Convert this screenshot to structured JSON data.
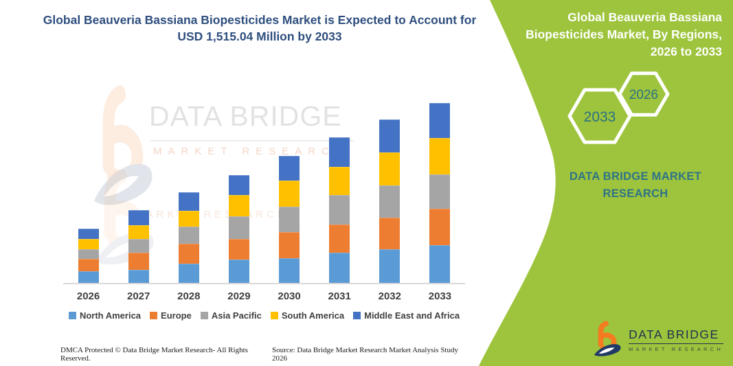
{
  "header": {
    "title": "Global Beauveria Bassiana Biopesticides Market is Expected to Account for USD 1,515.04 Million by 2033"
  },
  "side_panel": {
    "title": "Global Beauveria Bassiana Biopesticides Market, By Regions, 2026 to 2033",
    "hexagon_back_label": "2033",
    "hexagon_front_label": "2026",
    "brand_text": "DATA BRIDGE MARKET RESEARCH",
    "panel_color": "#9DC43C",
    "text_teal": "#2E7388"
  },
  "watermark": {
    "brand_line1": "DATA BRIDGE",
    "brand_line2": "MARKET RESEARCH",
    "ghost_line": "MARKET RESEARCH"
  },
  "logo": {
    "line1": "DATA BRIDGE",
    "line2": "MARKET RESEARCH"
  },
  "footer": {
    "left": "DMCA Protected © Data Bridge Market Research-  All Rights Reserved.",
    "right": "Source: Data Bridge Market Research  Market Analysis Study 2026"
  },
  "chart_data": {
    "type": "bar",
    "subtype": "stacked-vertical",
    "unit": "USD Million",
    "categories": [
      "2026",
      "2027",
      "2028",
      "2029",
      "2030",
      "2031",
      "2032",
      "2033"
    ],
    "series": [
      {
        "name": "North America",
        "color": "#5B9BD5",
        "values": [
          99,
          110,
          160,
          198,
          210,
          253,
          282,
          316.04
        ]
      },
      {
        "name": "Europe",
        "color": "#ED7D31",
        "values": [
          105,
          147,
          168,
          173,
          216,
          240,
          270,
          309
        ]
      },
      {
        "name": "Asia Pacific",
        "color": "#A5A5A5",
        "values": [
          80,
          113,
          145,
          188,
          214,
          245,
          272,
          289
        ]
      },
      {
        "name": "South America",
        "color": "#FFC000",
        "values": [
          85,
          119,
          136,
          179,
          219,
          240,
          274,
          309
        ]
      },
      {
        "name": "Middle East and Africa",
        "color": "#4472C4",
        "values": [
          91,
          124,
          153,
          173,
          211,
          246,
          279,
          292
        ]
      }
    ],
    "estimated_totals": [
      460,
      613,
      762,
      911,
      1070,
      1224,
      1377,
      1515.04
    ],
    "stated_total_2033": 1515.04,
    "y_axis_shown": false,
    "gridlines": false,
    "legend_position": "bottom",
    "axis_line_color": "#D9D9D9",
    "note": "Per-region values estimated from stacked segment heights, scaled so 2033 total equals the stated USD 1,515.04 Million."
  }
}
